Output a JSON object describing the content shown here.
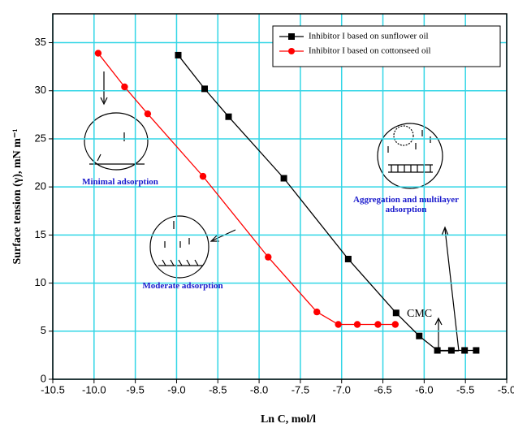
{
  "chart_data": {
    "type": "line",
    "xlabel": "Ln C, mol/l",
    "ylabel": "Surface tension (γ), mN m⁻¹",
    "xlim": [
      -10.5,
      -5.0
    ],
    "ylim": [
      0,
      38
    ],
    "xticks": [
      -10.5,
      {
        "value": -10,
        "label": "-10.0"
      },
      -9.5,
      {
        "value": -9,
        "label": "-9.0"
      },
      -8.5,
      {
        "value": -8,
        "label": "-8.0"
      },
      -7.5,
      {
        "value": -7,
        "label": "-7.0"
      },
      -6.5,
      {
        "value": -6,
        "label": "-6.0"
      },
      -5.5,
      {
        "value": -5,
        "label": "-5.0"
      }
    ],
    "yticks": [
      0,
      5,
      10,
      15,
      20,
      25,
      30,
      35
    ],
    "grid": true,
    "grid_color": "#33d6e6",
    "legend": "upper right",
    "series": [
      {
        "name": "Inhibitor I based on sunflower oil",
        "color": "#000000",
        "marker": "square",
        "x": [
          -8.98,
          -8.66,
          -8.37,
          -7.7,
          -6.92,
          -6.34,
          -6.06,
          -5.84,
          -5.67,
          -5.51,
          -5.37
        ],
        "values": [
          33.7,
          30.2,
          27.3,
          20.9,
          12.5,
          6.9,
          4.5,
          3.0,
          3.0,
          3.0,
          3.0
        ]
      },
      {
        "name": "Inhibitor I based on cottonseed oil",
        "color": "#ff0000",
        "marker": "circle",
        "x": [
          -9.95,
          -9.63,
          -9.35,
          -8.68,
          -7.89,
          -7.3,
          -7.04,
          -6.81,
          -6.56,
          -6.35
        ],
        "values": [
          33.9,
          30.4,
          27.6,
          21.1,
          12.7,
          7.0,
          5.7,
          5.7,
          5.7,
          5.7
        ]
      }
    ],
    "annotations": [
      "Minimal adsorption",
      "Moderate adsorption",
      "Aggregation and multilayer adsorption",
      "CMC"
    ]
  }
}
